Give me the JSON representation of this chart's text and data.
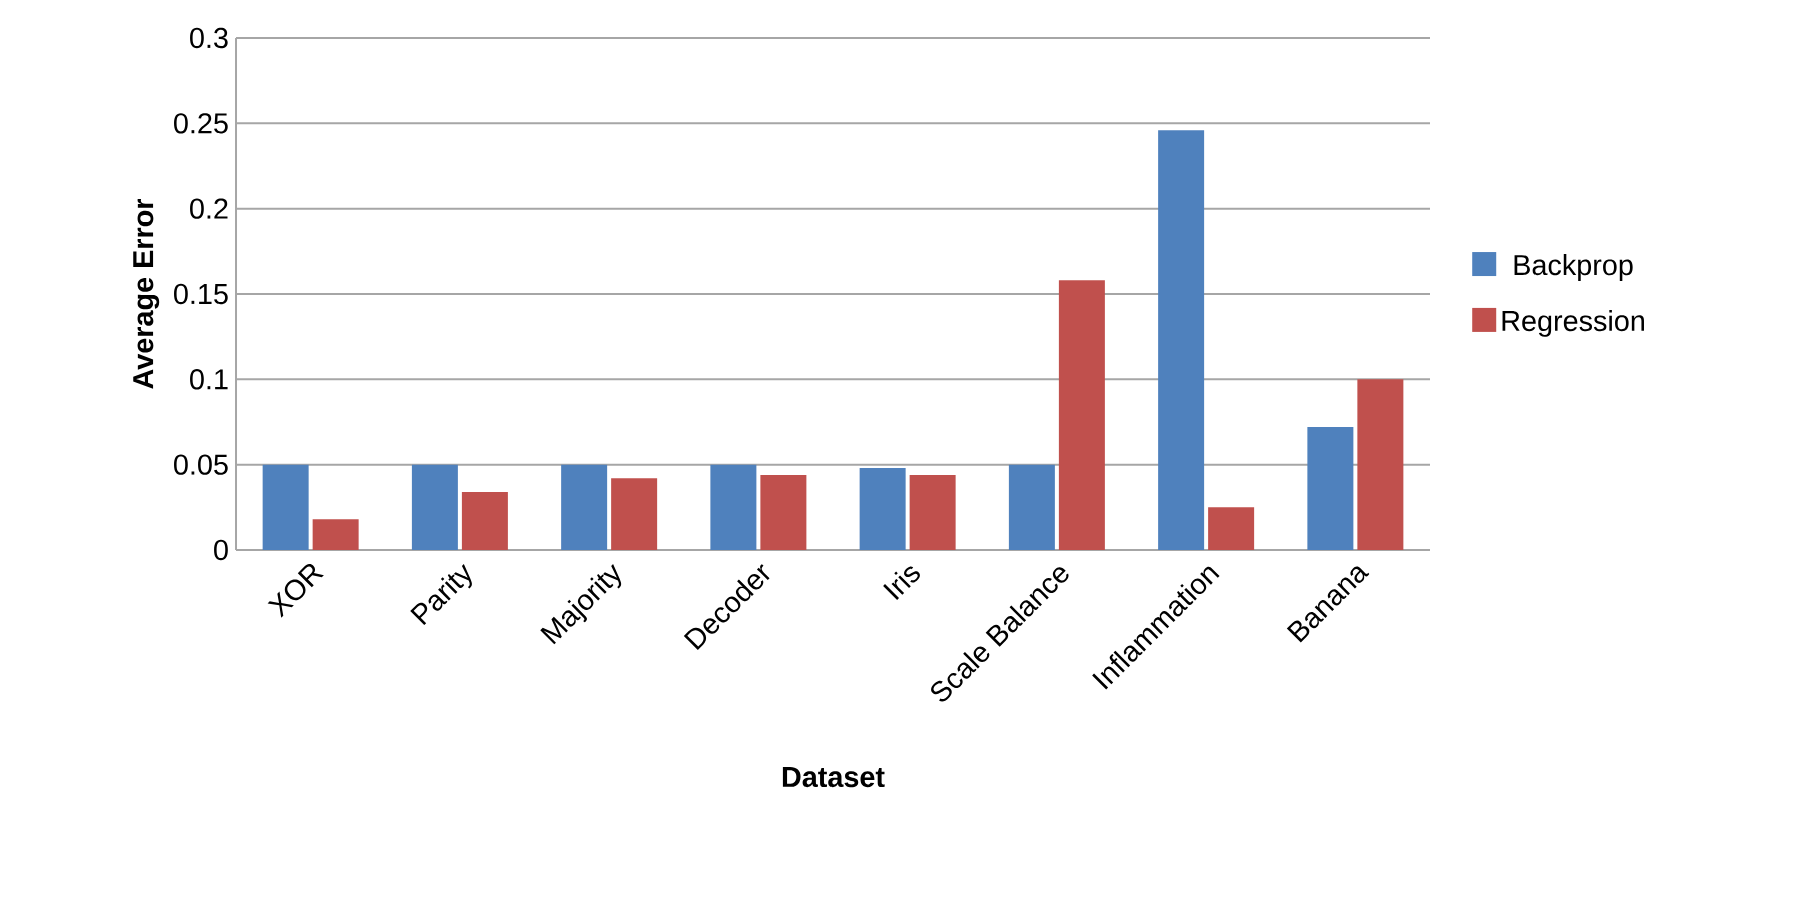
{
  "chart_data": {
    "type": "bar",
    "xlabel": "Dataset",
    "ylabel": "Average Error",
    "categories": [
      "XOR",
      "Parity",
      "Majority",
      "Decoder",
      "Iris",
      "Scale Balance",
      "Inflammation",
      "Banana"
    ],
    "series": [
      {
        "name": "Backprop",
        "color": "#4f81bd",
        "values": [
          0.05,
          0.05,
          0.05,
          0.05,
          0.048,
          0.05,
          0.246,
          0.072
        ]
      },
      {
        "name": "Regression",
        "color": "#c0504d",
        "values": [
          0.018,
          0.034,
          0.042,
          0.044,
          0.044,
          0.158,
          0.025,
          0.1
        ]
      }
    ],
    "ylim": [
      0,
      0.3
    ],
    "yticks": [
      0,
      0.05,
      0.1,
      0.15,
      0.2,
      0.25,
      0.3
    ],
    "grid": "y",
    "legend": "right"
  }
}
